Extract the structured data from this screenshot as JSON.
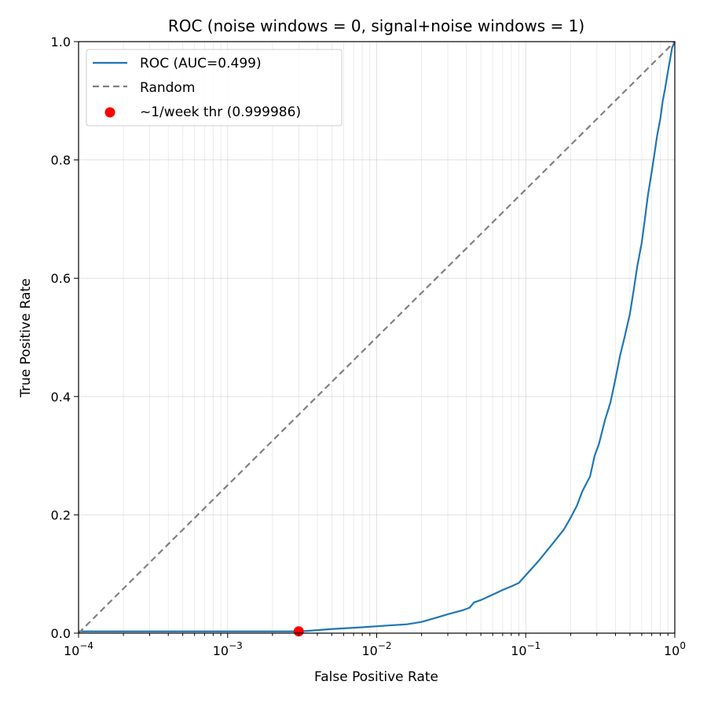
{
  "chart_data": {
    "type": "line",
    "title": "ROC (noise windows = 0, signal+noise windows = 1)",
    "xlabel": "False Positive Rate",
    "ylabel": "True Positive Rate",
    "xscale": "log",
    "xlim": [
      0.0001,
      1
    ],
    "ylim": [
      0,
      1
    ],
    "grid": true,
    "legend_position": "upper-left",
    "x_ticks": [
      {
        "base": "10",
        "exp": "−4"
      },
      {
        "base": "10",
        "exp": "−3"
      },
      {
        "base": "10",
        "exp": "−2"
      },
      {
        "base": "10",
        "exp": "−1"
      },
      {
        "base": "10",
        "exp": "0"
      }
    ],
    "y_ticks": [
      "0.0",
      "0.2",
      "0.4",
      "0.6",
      "0.8",
      "1.0"
    ],
    "series": [
      {
        "name": "ROC (AUC=0.499)",
        "kind": "line",
        "color": "#1f77b4",
        "x": [
          0.0001,
          0.001,
          0.003,
          0.0035,
          0.005,
          0.008,
          0.012,
          0.016,
          0.02,
          0.025,
          0.03,
          0.038,
          0.042,
          0.045,
          0.05,
          0.06,
          0.07,
          0.08,
          0.09,
          0.1,
          0.12,
          0.15,
          0.18,
          0.2,
          0.22,
          0.24,
          0.27,
          0.29,
          0.31,
          0.34,
          0.37,
          0.4,
          0.43,
          0.46,
          0.5,
          0.53,
          0.56,
          0.6,
          0.63,
          0.66,
          0.7,
          0.73,
          0.76,
          0.8,
          0.83,
          0.86,
          0.9,
          0.93,
          0.96,
          1.0
        ],
        "y": [
          0.003,
          0.003,
          0.003,
          0.004,
          0.007,
          0.01,
          0.013,
          0.015,
          0.019,
          0.026,
          0.032,
          0.039,
          0.043,
          0.052,
          0.056,
          0.065,
          0.073,
          0.079,
          0.085,
          0.098,
          0.12,
          0.15,
          0.175,
          0.195,
          0.215,
          0.24,
          0.265,
          0.3,
          0.32,
          0.36,
          0.39,
          0.43,
          0.47,
          0.5,
          0.54,
          0.58,
          0.62,
          0.66,
          0.7,
          0.74,
          0.78,
          0.81,
          0.84,
          0.87,
          0.9,
          0.92,
          0.95,
          0.97,
          0.99,
          1.0
        ]
      },
      {
        "name": "Random",
        "kind": "dashed-line",
        "color": "#808080",
        "x": [
          0.0001,
          1
        ],
        "y": [
          0.0001,
          1
        ]
      },
      {
        "name": "~1/week thr (0.999986)",
        "kind": "point",
        "color": "#ff0000",
        "x": [
          0.003
        ],
        "y": [
          0.003
        ]
      }
    ]
  }
}
